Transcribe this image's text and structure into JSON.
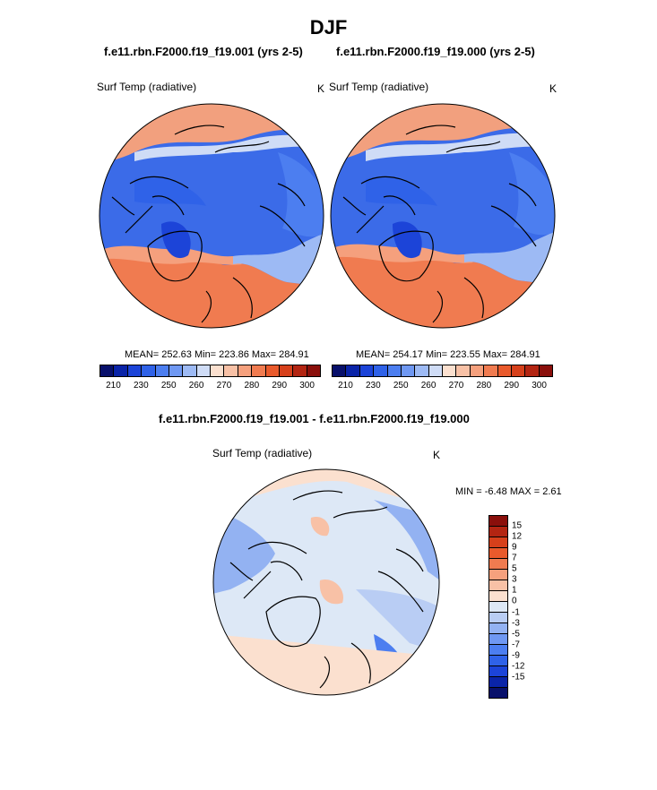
{
  "page": {
    "title": "DJF",
    "panels": [
      {
        "case": "f.e11.rbn.F2000.f19_f19.001 (yrs 2-5)",
        "variable": "Surf Temp (radiative)",
        "units": "K",
        "stats": "MEAN= 252.63  Min= 223.86  Max= 284.91"
      },
      {
        "case": "f.e11.rbn.F2000.f19_f19.000 (yrs 2-5)",
        "variable": "Surf Temp (radiative)",
        "units": "K",
        "stats": "MEAN= 254.17  Min= 223.55  Max= 284.91"
      }
    ],
    "diff": {
      "case": "f.e11.rbn.F2000.f19_f19.001 - f.e11.rbn.F2000.f19_f19.000",
      "variable": "Surf Temp (radiative)",
      "units": "K",
      "minmax": "MIN =  -6.48 MAX =   2.61"
    }
  },
  "colorbars": {
    "top_ticks": [
      "210",
      "230",
      "250",
      "260",
      "270",
      "280",
      "290",
      "300"
    ],
    "top_colors": [
      "#08106b",
      "#0a24a8",
      "#1c44d8",
      "#2f62e8",
      "#4c7ef0",
      "#6f98f2",
      "#9dbaf4",
      "#cfdcf6",
      "#fbe0cf",
      "#f8c1a6",
      "#f5a07d",
      "#f07b50",
      "#e95a2c",
      "#d6401b",
      "#b32512",
      "#8a0f0b"
    ],
    "diff_ticks": [
      "15",
      "12",
      "9",
      "7",
      "5",
      "3",
      "1",
      "0",
      "-1",
      "-3",
      "-5",
      "-7",
      "-9",
      "-12",
      "-15"
    ],
    "diff_colors": [
      "#8a0f0b",
      "#b32512",
      "#d6401b",
      "#e95a2c",
      "#f07b50",
      "#f5a07d",
      "#f8c1a6",
      "#fbe0cf",
      "#dde8f6",
      "#b9cdf4",
      "#93b2f2",
      "#6f98f2",
      "#4c7ef0",
      "#2f62e8",
      "#1c44d8",
      "#0a24a8",
      "#08106b"
    ]
  }
}
